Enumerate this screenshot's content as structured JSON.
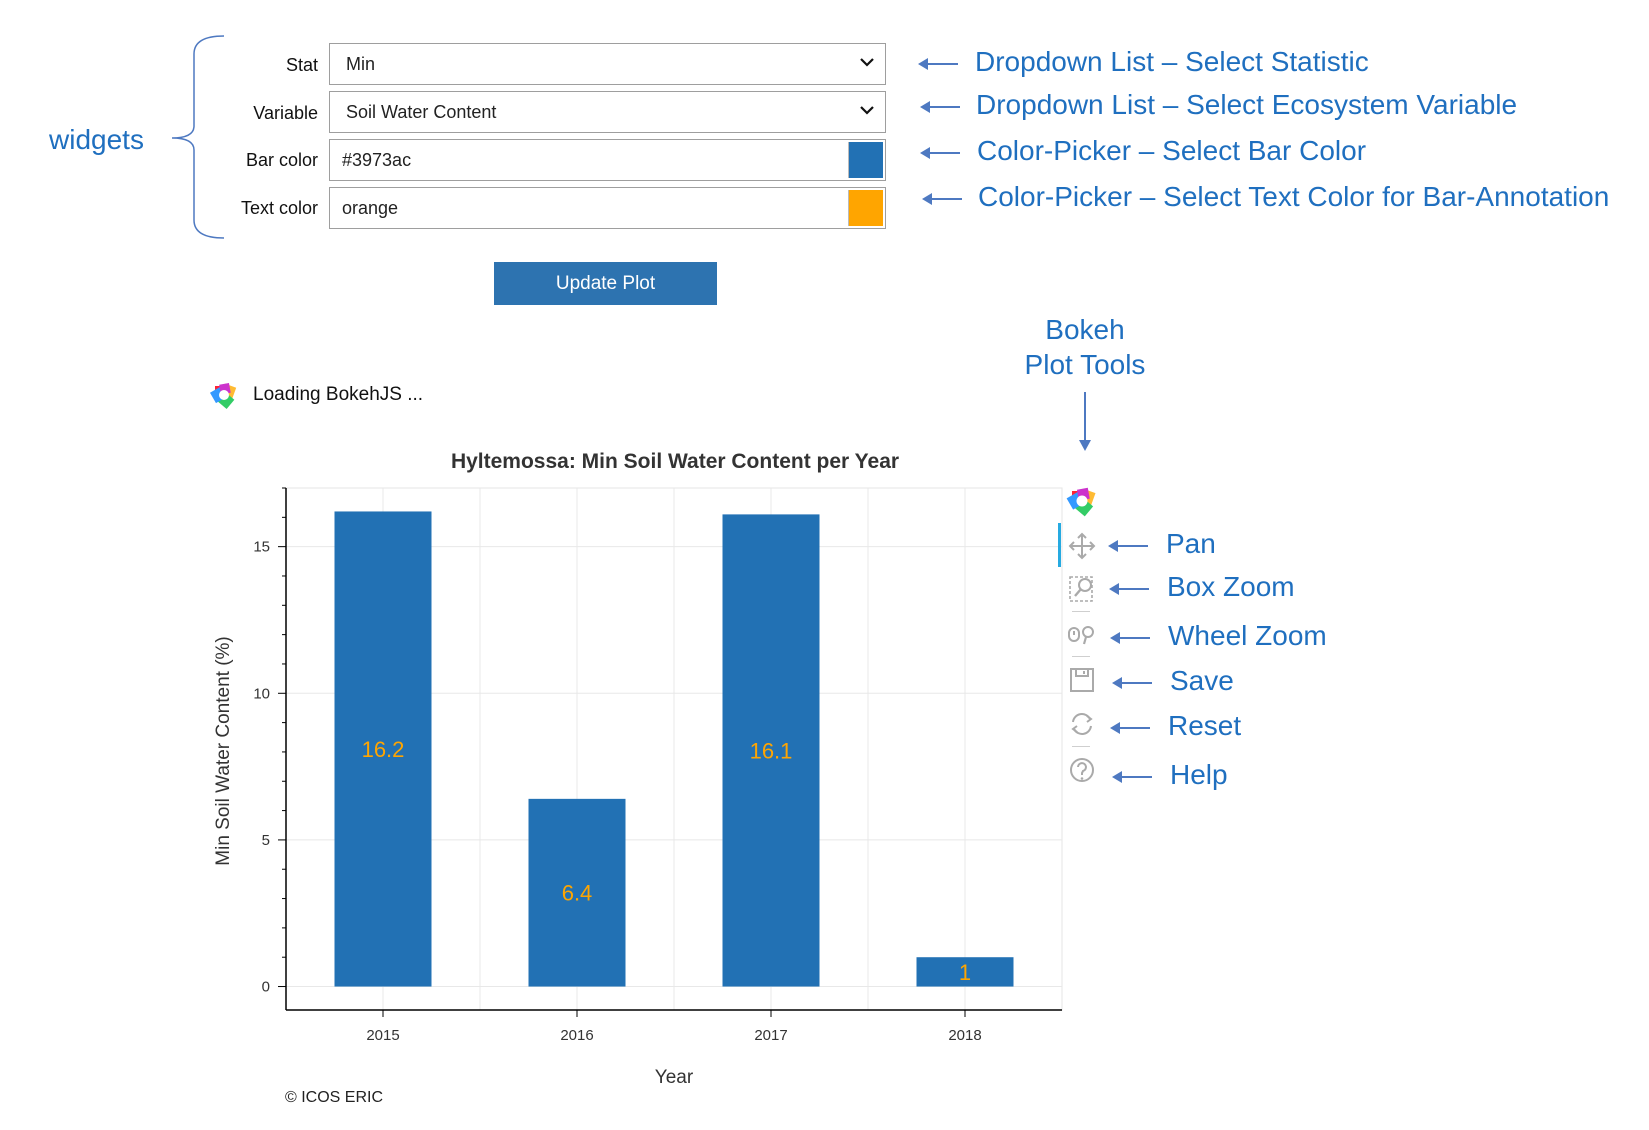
{
  "widgets": {
    "group_label": "widgets",
    "stat": {
      "label": "Stat",
      "value": "Min"
    },
    "variable": {
      "label": "Variable",
      "value": "Soil Water Content"
    },
    "bar_color": {
      "label": "Bar color",
      "value": "#3973ac",
      "swatch": "#2271b4"
    },
    "text_color": {
      "label": "Text color",
      "value": "orange",
      "swatch": "#ffa500"
    },
    "update_button": "Update Plot"
  },
  "annotations": {
    "stat_dropdown": "Dropdown List – Select Statistic",
    "variable_dropdown": "Dropdown List – Select Ecosystem Variable",
    "bar_color_picker": "Color-Picker – Select Bar Color",
    "text_color_picker": "Color-Picker – Select Text Color for Bar-Annotation",
    "plot_tools_line1": "Bokeh",
    "plot_tools_line2": "Plot Tools",
    "tools": [
      "Pan",
      "Box Zoom",
      "Wheel Zoom",
      "Save",
      "Reset",
      "Help"
    ]
  },
  "loading": "Loading BokehJS ...",
  "footer": "© ICOS ERIC",
  "toolbar_icons": [
    "bokeh-logo-icon",
    "pan-icon",
    "box-zoom-icon",
    "wheel-zoom-icon",
    "save-icon",
    "reset-icon",
    "help-icon"
  ],
  "colors": {
    "bar": "#2271b4",
    "bar_label": "#ffa500",
    "annotation": "#1f6fbf",
    "button": "#2d73b0"
  },
  "chart_data": {
    "type": "bar",
    "title": "Hyltemossa: Min  Soil Water Content  per Year",
    "xlabel": "Year",
    "ylabel": "Min  Soil Water Content (%)",
    "categories": [
      "2015",
      "2016",
      "2017",
      "2018"
    ],
    "values": [
      16.2,
      6.4,
      16.1,
      1
    ],
    "labels": [
      "16.2",
      "6.4",
      "16.1",
      "1"
    ],
    "yticks": [
      "0",
      "5",
      "10",
      "15"
    ],
    "ylim": [
      -0.8,
      17
    ],
    "grid": true
  }
}
